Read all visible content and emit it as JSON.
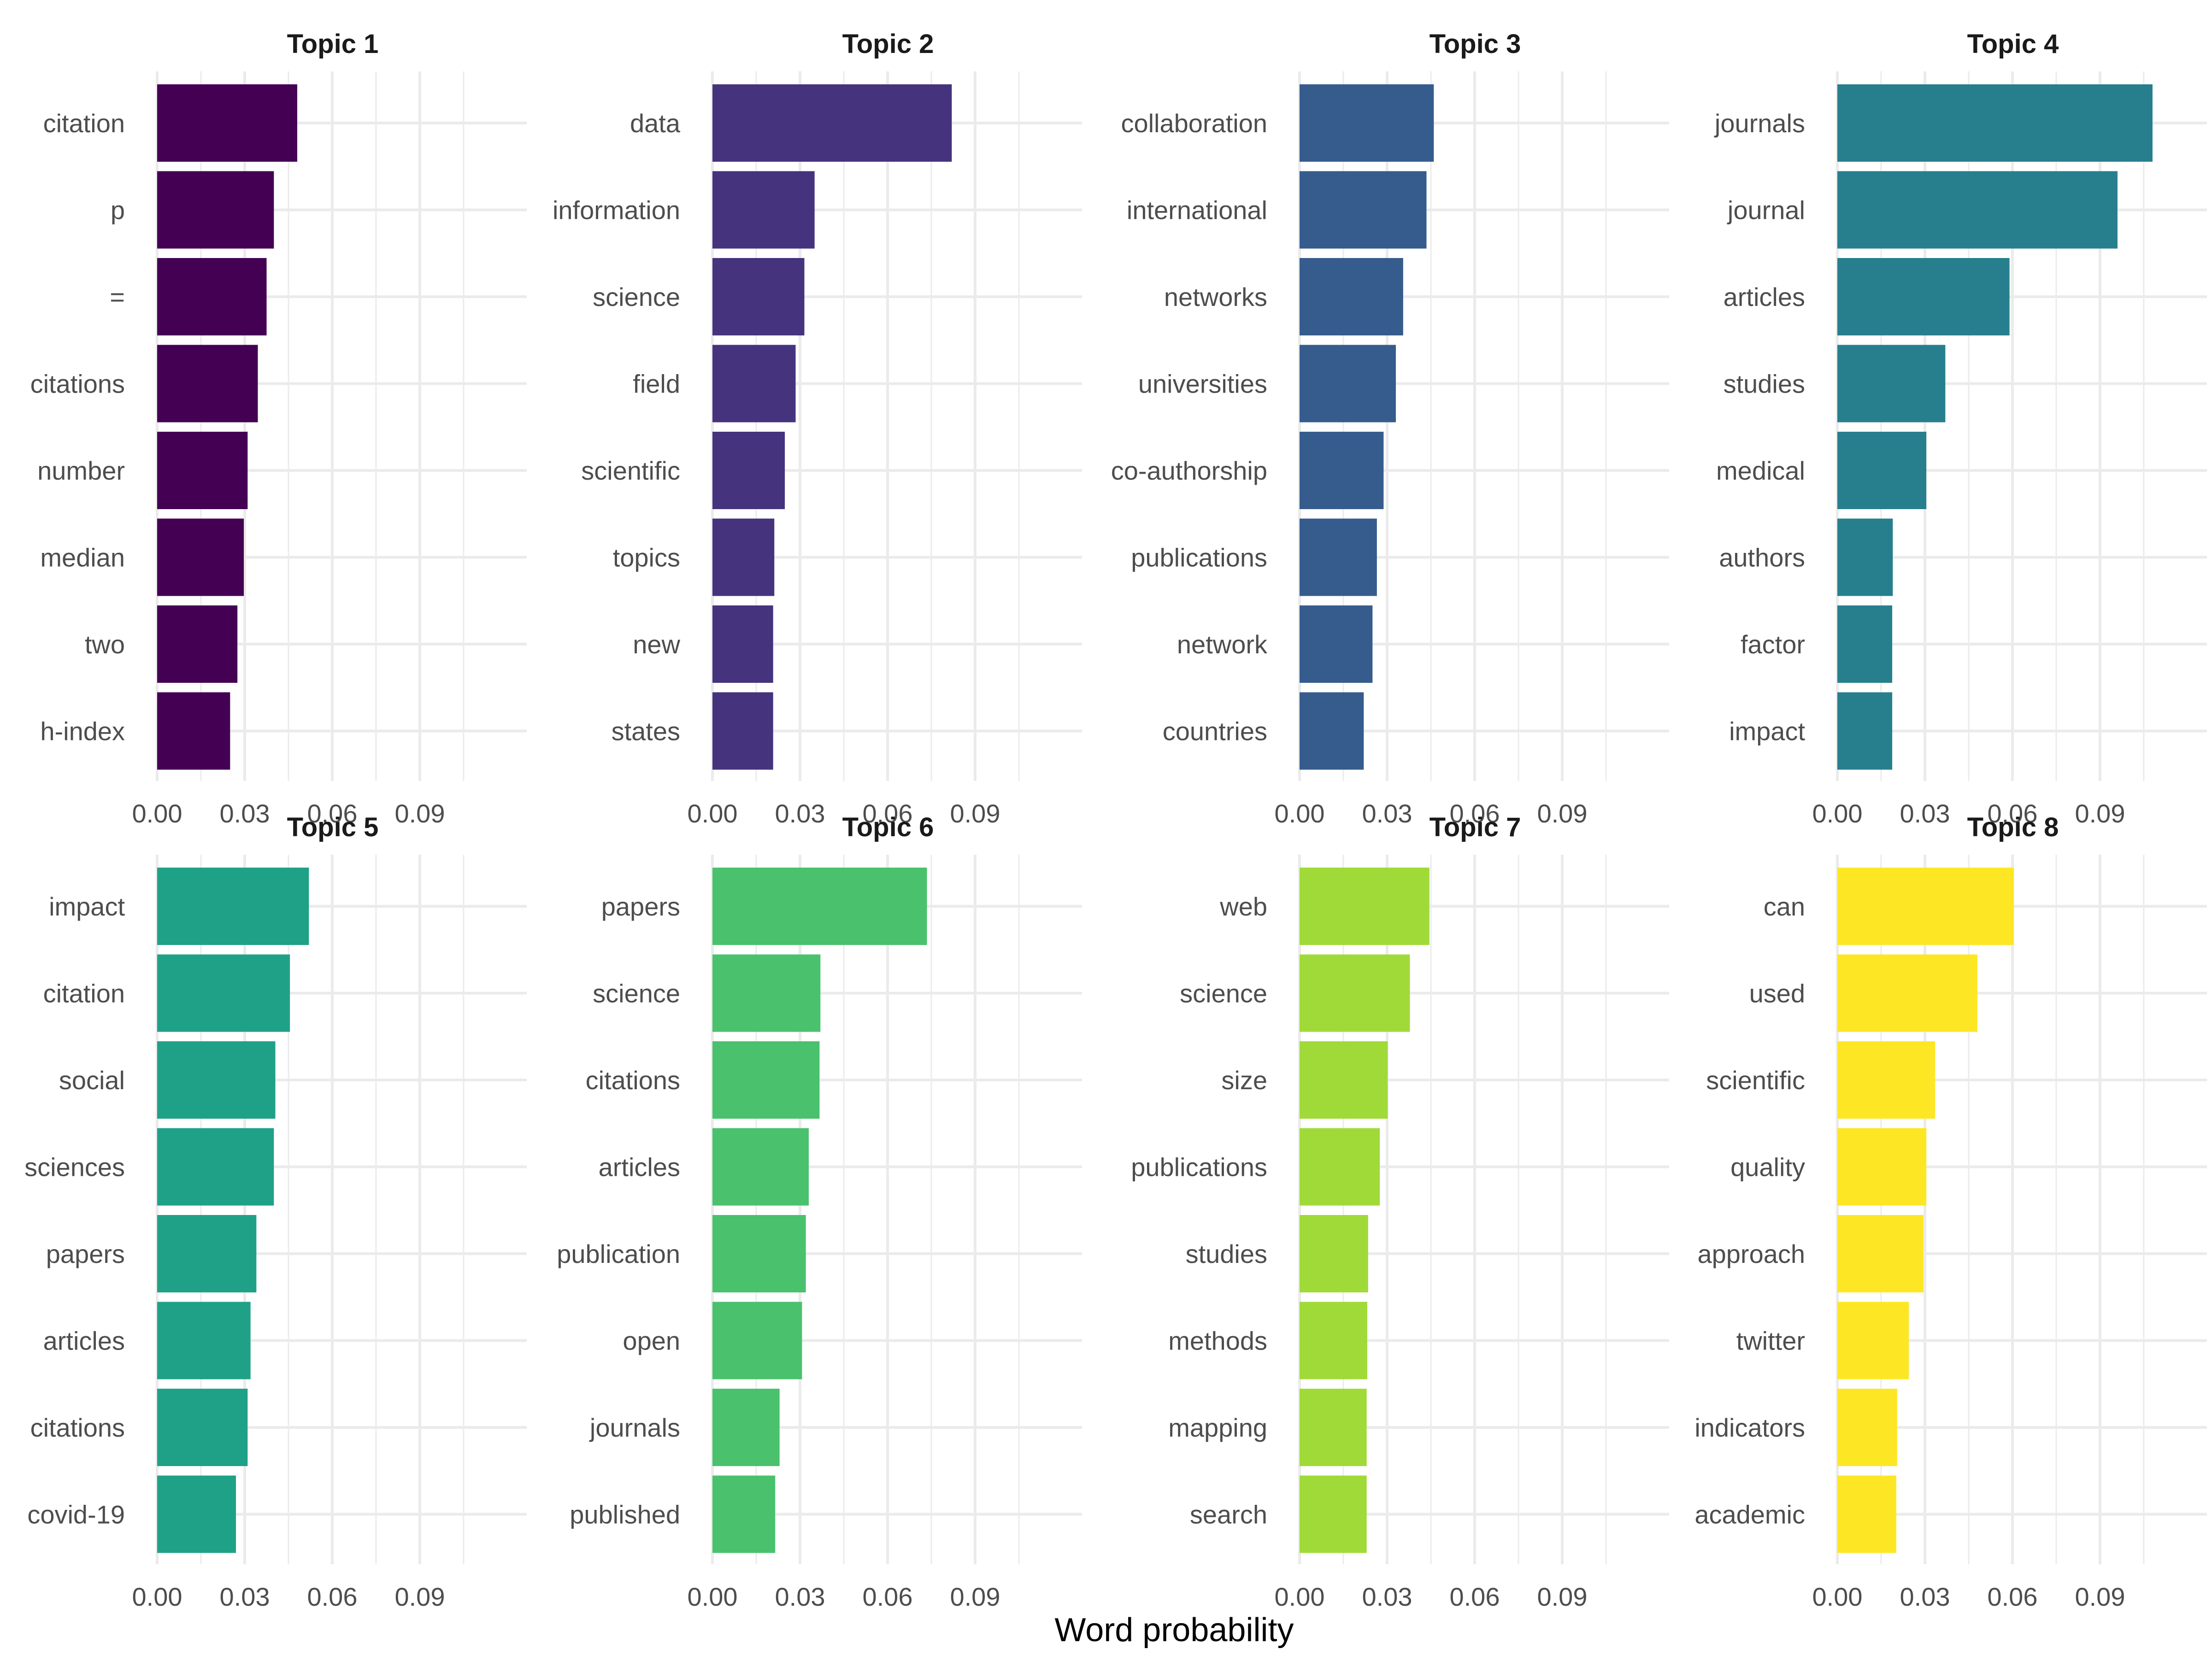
{
  "chart_data": {
    "type": "bar",
    "orientation": "horizontal",
    "facet_layout": "4 columns x 2 rows",
    "xlabel": "Word probability",
    "x_ticks": [
      "0.00",
      "0.03",
      "0.06",
      "0.09"
    ],
    "xlim": [
      0,
      0.11
    ],
    "grid": true,
    "colors": [
      "#440154",
      "#46337e",
      "#365c8d",
      "#277f8e",
      "#1fa187",
      "#4ac16d",
      "#a0da39",
      "#fde725"
    ],
    "panels": [
      {
        "title": "Topic 1",
        "words": [
          "citation",
          "p",
          "=",
          "citations",
          "number",
          "median",
          "two",
          "h-index"
        ],
        "values": [
          0.048,
          0.04,
          0.0375,
          0.0345,
          0.031,
          0.0297,
          0.0275,
          0.025
        ]
      },
      {
        "title": "Topic 2",
        "words": [
          "data",
          "information",
          "science",
          "field",
          "scientific",
          "topics",
          "new",
          "states"
        ],
        "values": [
          0.082,
          0.035,
          0.0315,
          0.0285,
          0.0248,
          0.0212,
          0.0208,
          0.0208
        ]
      },
      {
        "title": "Topic 3",
        "words": [
          "collaboration",
          "international",
          "networks",
          "universities",
          "co-authorship",
          "publications",
          "network",
          "countries"
        ],
        "values": [
          0.046,
          0.0435,
          0.0355,
          0.033,
          0.0288,
          0.0265,
          0.025,
          0.022
        ]
      },
      {
        "title": "Topic 4",
        "words": [
          "journals",
          "journal",
          "articles",
          "studies",
          "medical",
          "authors",
          "factor",
          "impact"
        ],
        "values": [
          0.108,
          0.096,
          0.059,
          0.037,
          0.0305,
          0.019,
          0.0188,
          0.0188
        ]
      },
      {
        "title": "Topic 5",
        "words": [
          "impact",
          "citation",
          "social",
          "sciences",
          "papers",
          "articles",
          "citations",
          "covid-19"
        ],
        "values": [
          0.052,
          0.0455,
          0.0405,
          0.04,
          0.034,
          0.032,
          0.031,
          0.027
        ]
      },
      {
        "title": "Topic 6",
        "words": [
          "papers",
          "science",
          "citations",
          "articles",
          "publication",
          "open",
          "journals",
          "published"
        ],
        "values": [
          0.0735,
          0.037,
          0.0367,
          0.033,
          0.032,
          0.0307,
          0.023,
          0.0215
        ]
      },
      {
        "title": "Topic 7",
        "words": [
          "web",
          "science",
          "size",
          "publications",
          "studies",
          "methods",
          "mapping",
          "search"
        ],
        "values": [
          0.0445,
          0.0378,
          0.0302,
          0.0275,
          0.0235,
          0.0232,
          0.023,
          0.023
        ]
      },
      {
        "title": "Topic 8",
        "words": [
          "can",
          "used",
          "scientific",
          "quality",
          "approach",
          "twitter",
          "indicators",
          "academic"
        ],
        "values": [
          0.0605,
          0.048,
          0.0335,
          0.0305,
          0.0295,
          0.0245,
          0.0205,
          0.0202
        ]
      }
    ]
  }
}
